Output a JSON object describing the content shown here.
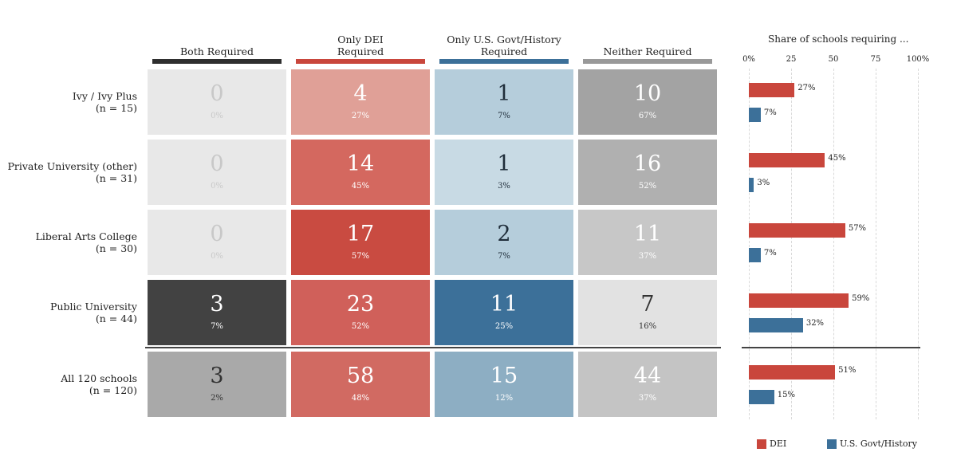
{
  "chart_data": {
    "type": "table",
    "columns": [
      {
        "label": "Both Required",
        "color": "#2f2f2f"
      },
      {
        "label": "Only DEI\nRequired",
        "color": "#c9463c"
      },
      {
        "label": "Only U.S. Govt/History\nRequired",
        "color": "#3c7099"
      },
      {
        "label": "Neither Required",
        "color": "#999999"
      }
    ],
    "rows": [
      {
        "label": "Ivy / Ivy Plus",
        "n": "(n = 15)",
        "cells": [
          {
            "count": "0",
            "pct": "0%",
            "bg": "#e8e8e8",
            "fg": "#c8c8c8"
          },
          {
            "count": "4",
            "pct": "27%",
            "bg": "#e0a097",
            "fg": "#ffffff"
          },
          {
            "count": "1",
            "pct": "7%",
            "bg": "#b5cddb",
            "fg": "#1f2d3a"
          },
          {
            "count": "10",
            "pct": "67%",
            "bg": "#a3a3a3",
            "fg": "#ffffff"
          }
        ],
        "dei": 27,
        "govt": 7
      },
      {
        "label": "Private University (other)",
        "n": "(n = 31)",
        "cells": [
          {
            "count": "0",
            "pct": "0%",
            "bg": "#e8e8e8",
            "fg": "#c8c8c8"
          },
          {
            "count": "14",
            "pct": "45%",
            "bg": "#d4685f",
            "fg": "#ffffff"
          },
          {
            "count": "1",
            "pct": "3%",
            "bg": "#c8dae4",
            "fg": "#1f2d3a"
          },
          {
            "count": "16",
            "pct": "52%",
            "bg": "#b0b0b0",
            "fg": "#ffffff"
          }
        ],
        "dei": 45,
        "govt": 3
      },
      {
        "label": "Liberal Arts College",
        "n": "(n = 30)",
        "cells": [
          {
            "count": "0",
            "pct": "0%",
            "bg": "#e8e8e8",
            "fg": "#c8c8c8"
          },
          {
            "count": "17",
            "pct": "57%",
            "bg": "#c94b41",
            "fg": "#ffffff"
          },
          {
            "count": "2",
            "pct": "7%",
            "bg": "#b5cddb",
            "fg": "#1f2d3a"
          },
          {
            "count": "11",
            "pct": "37%",
            "bg": "#c7c7c7",
            "fg": "#ffffff"
          }
        ],
        "dei": 57,
        "govt": 7
      },
      {
        "label": "Public University",
        "n": "(n = 44)",
        "cells": [
          {
            "count": "3",
            "pct": "7%",
            "bg": "#424242",
            "fg": "#ffffff"
          },
          {
            "count": "23",
            "pct": "52%",
            "bg": "#d0605a",
            "fg": "#ffffff"
          },
          {
            "count": "11",
            "pct": "25%",
            "bg": "#3c7099",
            "fg": "#ffffff"
          },
          {
            "count": "7",
            "pct": "16%",
            "bg": "#e2e2e2",
            "fg": "#333333"
          }
        ],
        "dei": 59,
        "govt": 32
      },
      {
        "label": "All 120 schools",
        "n": "(n = 120)",
        "cells": [
          {
            "count": "3",
            "pct": "2%",
            "bg": "#a9a9a9",
            "fg": "#333333"
          },
          {
            "count": "58",
            "pct": "48%",
            "bg": "#d16a62",
            "fg": "#ffffff"
          },
          {
            "count": "15",
            "pct": "12%",
            "bg": "#8daec3",
            "fg": "#ffffff"
          },
          {
            "count": "44",
            "pct": "37%",
            "bg": "#c4c4c4",
            "fg": "#ffffff"
          }
        ],
        "dei": 51,
        "govt": 15
      }
    ],
    "bar_chart": {
      "type": "bar",
      "title": "Share of schools requiring ...",
      "xlim": [
        0,
        100
      ],
      "ticks": [
        "0%",
        "25",
        "50",
        "75",
        "100%"
      ],
      "series": [
        {
          "name": "DEI",
          "color": "#c9463c"
        },
        {
          "name": "U.S. Govt/History",
          "color": "#3c7099"
        }
      ]
    }
  }
}
